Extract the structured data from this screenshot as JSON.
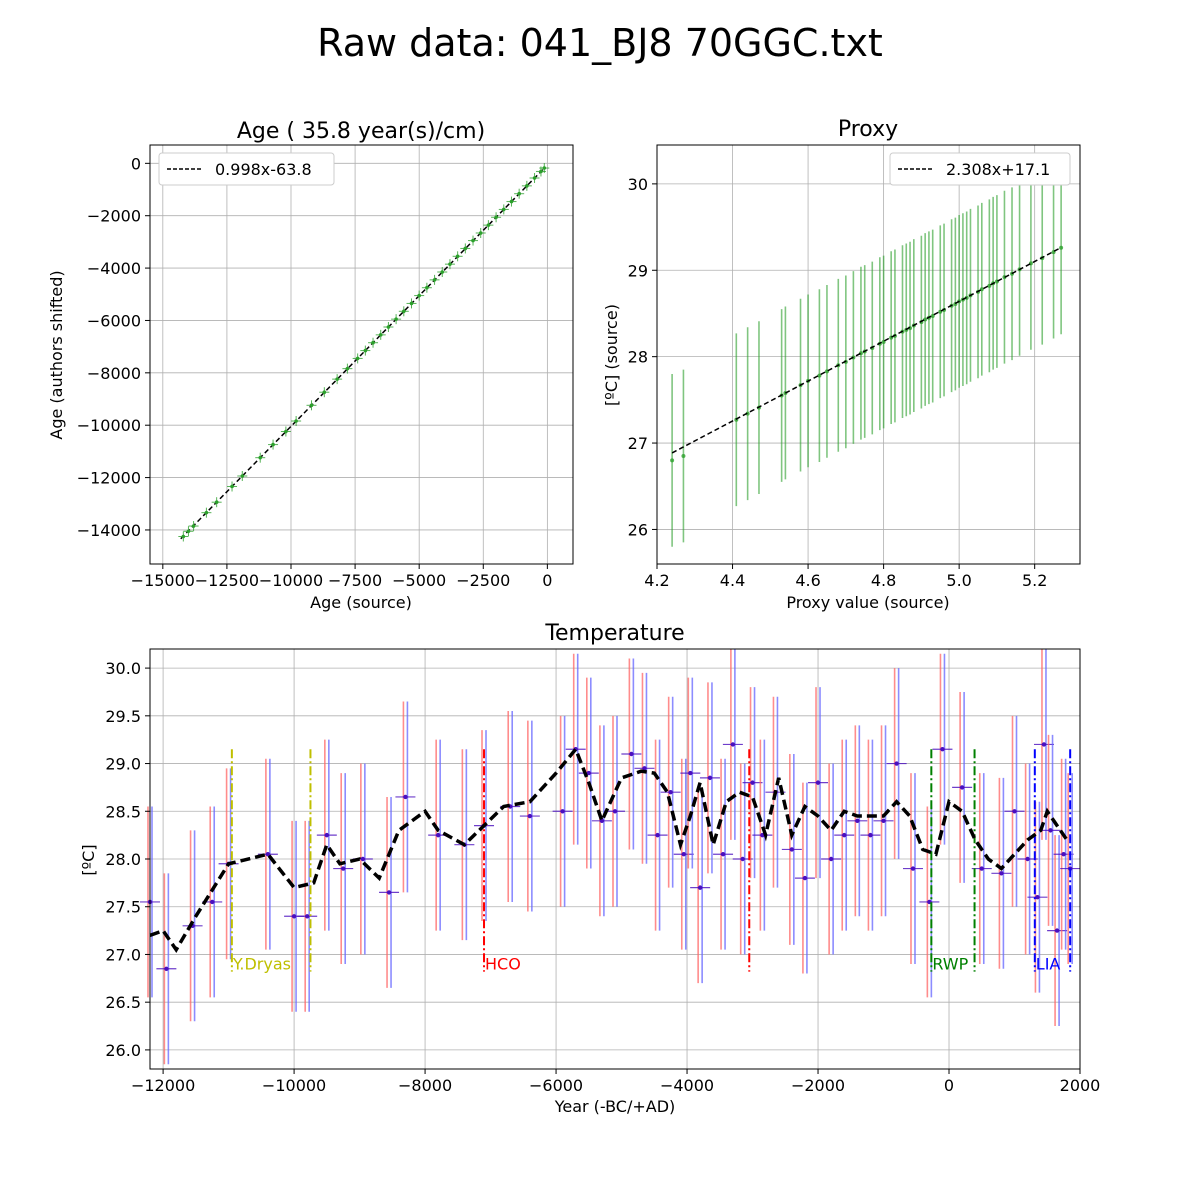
{
  "figure": {
    "title": "Raw data: 041_BJ8 70GGC.txt"
  },
  "chart_data": [
    {
      "id": "age",
      "type": "scatter",
      "title": "Age ( 35.8 year(s)/cm)",
      "xlabel": "Age (source)",
      "ylabel": "Age (authors shifted)",
      "xlim": [
        -15500,
        1000
      ],
      "ylim": [
        -15300,
        700
      ],
      "xticks": [
        -15000,
        -12500,
        -10000,
        -7500,
        -5000,
        -2500,
        0
      ],
      "yticks": [
        -14000,
        -12000,
        -10000,
        -8000,
        -6000,
        -4000,
        -2000,
        0
      ],
      "grid": true,
      "legend_position": "top-left",
      "legend": [
        "0.998x-63.8"
      ],
      "fit": {
        "slope": 0.998,
        "intercept": -63.8
      },
      "series": [
        {
          "x": [
            -14200,
            -14000,
            -13800,
            -13300,
            -12900,
            -12300,
            -11900,
            -11200,
            -10700,
            -10200,
            -9800,
            -9200,
            -8700,
            -8200,
            -7800,
            -7400,
            -7100,
            -6800,
            -6500,
            -6200,
            -5900,
            -5600,
            -5300,
            -5000,
            -4700,
            -4400,
            -4100,
            -3800,
            -3500,
            -3200,
            -2900,
            -2600,
            -2300,
            -2000,
            -1700,
            -1400,
            -1100,
            -800,
            -500,
            -250,
            -120
          ],
          "y": [
            -14250,
            -14050,
            -13850,
            -13340,
            -12940,
            -12340,
            -11940,
            -11240,
            -10740,
            -10240,
            -9840,
            -9240,
            -8740,
            -8240,
            -7840,
            -7450,
            -7150,
            -6850,
            -6550,
            -6250,
            -5950,
            -5650,
            -5350,
            -5050,
            -4750,
            -4450,
            -4150,
            -3850,
            -3550,
            -3250,
            -2950,
            -2660,
            -2360,
            -2060,
            -1760,
            -1460,
            -1160,
            -860,
            -560,
            -310,
            -180
          ]
        }
      ],
      "colors": {
        "points": "#2ca02c",
        "fit": "#000000"
      }
    },
    {
      "id": "proxy",
      "type": "scatter",
      "title": "Proxy",
      "xlabel": "Proxy value (source)",
      "ylabel": "[ºC] (source)",
      "xlim": [
        4.2,
        5.32
      ],
      "ylim": [
        25.6,
        30.45
      ],
      "xticks": [
        4.2,
        4.4,
        4.6,
        4.8,
        5.0,
        5.2
      ],
      "yticks": [
        26,
        27,
        28,
        29,
        30
      ],
      "grid": true,
      "legend_position": "top-right",
      "legend": [
        "2.308x+17.1"
      ],
      "fit": {
        "slope": 2.308,
        "intercept": 17.1
      },
      "error_bar": 1.0,
      "series": [
        {
          "x": [
            4.24,
            4.27,
            4.41,
            4.44,
            4.47,
            4.53,
            4.54,
            4.58,
            4.6,
            4.63,
            4.65,
            4.68,
            4.7,
            4.72,
            4.74,
            4.75,
            4.77,
            4.79,
            4.8,
            4.82,
            4.83,
            4.85,
            4.86,
            4.87,
            4.88,
            4.9,
            4.91,
            4.92,
            4.93,
            4.95,
            4.96,
            4.98,
            4.99,
            5.0,
            5.01,
            5.02,
            5.03,
            5.05,
            5.06,
            5.08,
            5.09,
            5.1,
            5.12,
            5.14,
            5.16,
            5.19,
            5.22,
            5.25,
            5.27
          ],
          "y": [
            26.8,
            26.85,
            27.27,
            27.34,
            27.41,
            27.55,
            27.58,
            27.67,
            27.72,
            27.78,
            27.83,
            27.9,
            27.94,
            27.99,
            28.04,
            28.06,
            28.1,
            28.15,
            28.17,
            28.22,
            28.24,
            28.29,
            28.31,
            28.33,
            28.36,
            28.4,
            28.43,
            28.45,
            28.47,
            28.52,
            28.54,
            28.59,
            28.61,
            28.64,
            28.66,
            28.68,
            28.71,
            28.75,
            28.78,
            28.82,
            28.85,
            28.87,
            28.92,
            28.96,
            29.01,
            29.08,
            29.14,
            29.21,
            29.26
          ]
        }
      ],
      "colors": {
        "points": "#2ca02c",
        "fit": "#000000"
      }
    },
    {
      "id": "temperature",
      "type": "line",
      "title": "Temperature",
      "xlabel": "Year (-BC/+AD)",
      "ylabel": "[ºC]",
      "xlim": [
        -12200,
        2000
      ],
      "ylim": [
        25.8,
        30.2
      ],
      "xticks": [
        -12000,
        -10000,
        -8000,
        -6000,
        -4000,
        -2000,
        0,
        2000
      ],
      "yticks": [
        26.0,
        26.5,
        27.0,
        27.5,
        28.0,
        28.5,
        29.0,
        29.5,
        30.0
      ],
      "grid": true,
      "smooth": {
        "x": [
          -12200,
          -12000,
          -11800,
          -11500,
          -11000,
          -10400,
          -10000,
          -9700,
          -9500,
          -9300,
          -9000,
          -8700,
          -8400,
          -8000,
          -7800,
          -7400,
          -7100,
          -6800,
          -6400,
          -6000,
          -5700,
          -5500,
          -5300,
          -5000,
          -4700,
          -4500,
          -4300,
          -4100,
          -3950,
          -3800,
          -3600,
          -3400,
          -3200,
          -3000,
          -2800,
          -2600,
          -2400,
          -2200,
          -2000,
          -1800,
          -1600,
          -1400,
          -1000,
          -800,
          -600,
          -400,
          -200,
          0,
          200,
          400,
          600,
          800,
          1000,
          1200,
          1400,
          1500,
          1600,
          1700,
          1800,
          1850
        ],
        "y": [
          27.2,
          27.25,
          27.05,
          27.4,
          27.95,
          28.05,
          27.7,
          27.75,
          28.15,
          27.95,
          28.0,
          27.8,
          28.3,
          28.5,
          28.3,
          28.15,
          28.35,
          28.55,
          28.6,
          28.9,
          29.15,
          28.8,
          28.4,
          28.85,
          28.92,
          28.9,
          28.7,
          28.15,
          28.45,
          28.8,
          28.15,
          28.6,
          28.7,
          28.65,
          28.25,
          28.85,
          28.25,
          28.55,
          28.45,
          28.3,
          28.5,
          28.45,
          28.45,
          28.6,
          28.45,
          28.1,
          28.05,
          28.6,
          28.5,
          28.2,
          28.0,
          27.9,
          28.05,
          28.2,
          28.3,
          28.5,
          28.4,
          28.3,
          28.2,
          28.2
        ]
      },
      "measurements": {
        "x": [
          -12200,
          -11950,
          -11550,
          -11250,
          -11000,
          -10400,
          -10000,
          -9800,
          -9500,
          -9250,
          -8950,
          -8550,
          -8300,
          -7800,
          -7400,
          -7100,
          -6700,
          -6400,
          -5900,
          -5700,
          -5500,
          -5300,
          -5100,
          -4850,
          -4650,
          -4450,
          -4250,
          -4050,
          -3950,
          -3800,
          -3650,
          -3450,
          -3300,
          -3150,
          -3000,
          -2850,
          -2650,
          -2400,
          -2200,
          -2000,
          -1800,
          -1600,
          -1400,
          -1200,
          -1000,
          -800,
          -550,
          -300,
          -100,
          200,
          500,
          800,
          1000,
          1200,
          1350,
          1450,
          1550,
          1650,
          1750,
          1850
        ],
        "y": [
          27.55,
          26.85,
          27.3,
          27.55,
          27.95,
          28.05,
          27.4,
          27.4,
          28.25,
          27.9,
          28.0,
          27.65,
          28.65,
          28.25,
          28.15,
          28.35,
          28.55,
          28.45,
          28.5,
          29.15,
          28.9,
          28.4,
          28.5,
          29.1,
          28.95,
          28.25,
          28.7,
          28.05,
          28.9,
          27.7,
          28.85,
          28.05,
          29.2,
          28.0,
          28.8,
          28.25,
          28.7,
          28.1,
          27.8,
          28.8,
          28.0,
          28.25,
          28.4,
          28.25,
          28.4,
          29.0,
          27.9,
          27.55,
          29.15,
          28.75,
          27.9,
          27.85,
          28.5,
          28.0,
          27.6,
          29.2,
          28.3,
          27.25,
          28.05,
          27.9
        ],
        "error_bar": 1.0
      },
      "periods": [
        {
          "label": "Y.Dryas",
          "start": -10950,
          "end": -9750,
          "color": "#bfbf00"
        },
        {
          "label": "HCO",
          "start": -7100,
          "end": -3050,
          "color": "#ff0000"
        },
        {
          "label": "RWP",
          "start": -270,
          "end": 390,
          "color": "#008000"
        },
        {
          "label": "LIA",
          "start": 1310,
          "end": 1850,
          "color": "#0000ff"
        }
      ],
      "colors": {
        "smooth": "#000000",
        "errorbar_a": "#ff6666",
        "errorbar_b": "#6666ff",
        "points": "#4b0fbf"
      }
    }
  ]
}
